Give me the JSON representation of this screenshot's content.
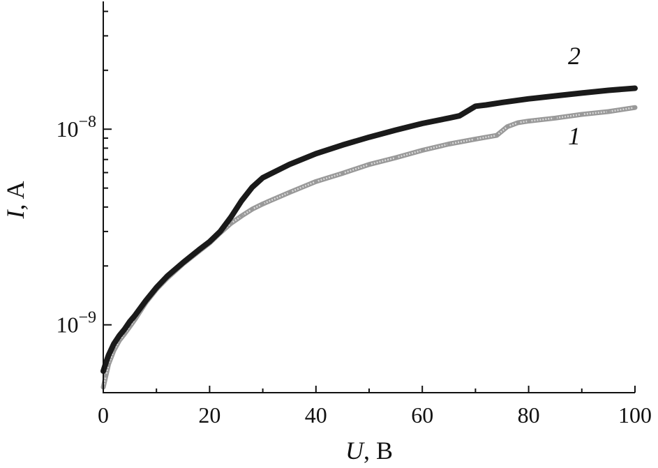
{
  "chart_data": {
    "type": "line",
    "title": "",
    "xlabel": "U, В",
    "xlabel_var": "U",
    "xlabel_unit": ", В",
    "ylabel": "I, A",
    "ylabel_var": "I",
    "ylabel_unit": ", A",
    "y_scale": "log",
    "xlim": [
      0,
      100
    ],
    "ylim": [
      4.5e-10,
      4.5e-08
    ],
    "x_ticks": [
      {
        "value": 0,
        "label": "0"
      },
      {
        "value": 20,
        "label": "20"
      },
      {
        "value": 40,
        "label": "40"
      },
      {
        "value": 60,
        "label": "60"
      },
      {
        "value": 80,
        "label": "80"
      },
      {
        "value": 100,
        "label": "100"
      }
    ],
    "y_ticks": [
      {
        "value": 1e-09,
        "base": "10",
        "exp": "−9"
      },
      {
        "value": 1e-08,
        "base": "10",
        "exp": "−8"
      }
    ],
    "y_minor_ticks": [
      2e-09,
      3e-09,
      4e-09,
      5e-09,
      6e-09,
      7e-09,
      8e-09,
      9e-09,
      2e-08,
      3e-08,
      4e-08
    ],
    "grid": false,
    "series": [
      {
        "label": "1",
        "color": "#999999",
        "marker": "hollow-square",
        "x": [
          0,
          0.5,
          1,
          2,
          3,
          4,
          5,
          6,
          8,
          10,
          12,
          15,
          18,
          20,
          22,
          24,
          26,
          28,
          30,
          35,
          40,
          45,
          50,
          55,
          60,
          65,
          70,
          74,
          76,
          78,
          80,
          85,
          90,
          95,
          100
        ],
        "y": [
          4.8e-10,
          5.5e-10,
          6.3e-10,
          7.4e-10,
          8.3e-10,
          9e-10,
          9.8e-10,
          1.07e-09,
          1.3e-09,
          1.52e-09,
          1.73e-09,
          2.05e-09,
          2.38e-09,
          2.62e-09,
          2.95e-09,
          3.3e-09,
          3.6e-09,
          3.9e-09,
          4.15e-09,
          4.75e-09,
          5.4e-09,
          5.95e-09,
          6.6e-09,
          7.15e-09,
          7.8e-09,
          8.4e-09,
          8.9e-09,
          9.3e-09,
          1.03e-08,
          1.08e-08,
          1.1e-08,
          1.14e-08,
          1.19e-08,
          1.23e-08,
          1.29e-08
        ]
      },
      {
        "label": "2",
        "color": "#1a1a1a",
        "marker": "filled",
        "x": [
          0,
          0.5,
          1,
          2,
          3,
          4,
          5,
          6,
          8,
          10,
          12,
          15,
          18,
          20,
          22,
          24,
          26,
          28,
          30,
          35,
          40,
          45,
          50,
          55,
          60,
          65,
          67,
          70,
          72,
          75,
          80,
          85,
          90,
          95,
          100
        ],
        "y": [
          5.8e-10,
          6.4e-10,
          7e-10,
          8e-10,
          8.8e-10,
          9.5e-10,
          1.04e-09,
          1.12e-09,
          1.33e-09,
          1.55e-09,
          1.77e-09,
          2.08e-09,
          2.42e-09,
          2.66e-09,
          3e-09,
          3.55e-09,
          4.3e-09,
          5.05e-09,
          5.65e-09,
          6.6e-09,
          7.5e-09,
          8.3e-09,
          9.1e-09,
          9.9e-09,
          1.07e-08,
          1.14e-08,
          1.17e-08,
          1.31e-08,
          1.33e-08,
          1.37e-08,
          1.43e-08,
          1.48e-08,
          1.53e-08,
          1.58e-08,
          1.62e-08
        ]
      }
    ]
  }
}
